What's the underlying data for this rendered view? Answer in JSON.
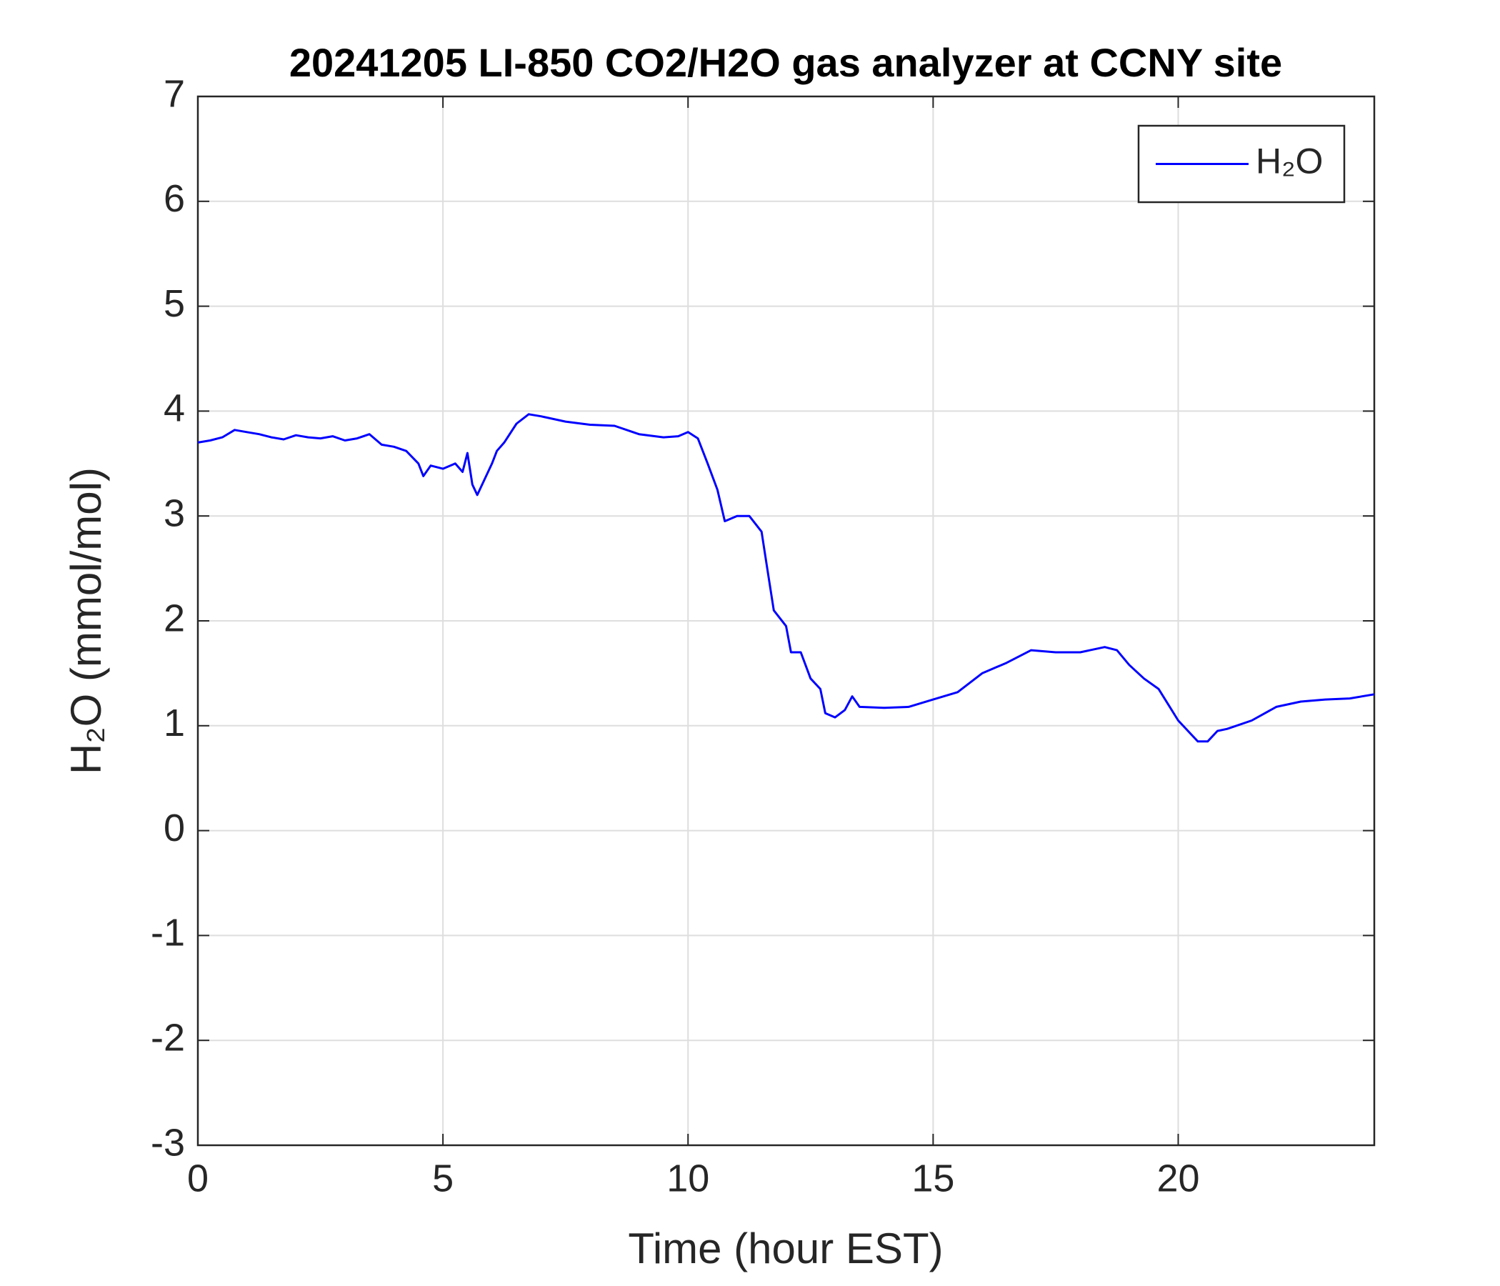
{
  "chart_data": {
    "type": "line",
    "title": "20241205 LI-850 CO2/H2O gas analyzer at CCNY site",
    "x_label": "Time (hour EST)",
    "y_label": "H₂O (mmol/mol)",
    "xlim": [
      0,
      24
    ],
    "xticks": [
      0,
      5,
      10,
      15,
      20
    ],
    "ylim": [
      -3,
      7
    ],
    "yticks": [
      -3,
      -2,
      -1,
      0,
      1,
      2,
      3,
      4,
      5,
      6,
      7
    ],
    "grid": true,
    "legend": "upper-right",
    "x": [
      0,
      0.25,
      0.5,
      0.75,
      1.0,
      1.25,
      1.5,
      1.75,
      2.0,
      2.25,
      2.5,
      2.75,
      3.0,
      3.25,
      3.5,
      3.75,
      4.0,
      4.25,
      4.5,
      4.6,
      4.75,
      5.0,
      5.25,
      5.4,
      5.5,
      5.6,
      5.7,
      5.85,
      6.0,
      6.1,
      6.25,
      6.5,
      6.75,
      7.0,
      7.5,
      8.0,
      8.5,
      9.0,
      9.5,
      9.8,
      10.0,
      10.2,
      10.4,
      10.6,
      10.75,
      11.0,
      11.25,
      11.5,
      11.6,
      11.75,
      12.0,
      12.1,
      12.3,
      12.5,
      12.7,
      12.8,
      13.0,
      13.2,
      13.35,
      13.5,
      14.0,
      14.5,
      15.0,
      15.5,
      16.0,
      16.5,
      17.0,
      17.5,
      18.0,
      18.5,
      18.75,
      19.0,
      19.3,
      19.6,
      19.8,
      20.0,
      20.2,
      20.4,
      20.6,
      20.8,
      21.0,
      21.5,
      22.0,
      22.5,
      23.0,
      23.5,
      24.0
    ],
    "series": [
      {
        "name": "H₂O",
        "color": "#0000ff",
        "values": [
          3.7,
          3.72,
          3.75,
          3.82,
          3.8,
          3.78,
          3.75,
          3.73,
          3.77,
          3.75,
          3.74,
          3.76,
          3.72,
          3.74,
          3.78,
          3.68,
          3.66,
          3.62,
          3.5,
          3.38,
          3.48,
          3.45,
          3.5,
          3.42,
          3.6,
          3.3,
          3.2,
          3.35,
          3.5,
          3.62,
          3.7,
          3.88,
          3.97,
          3.95,
          3.9,
          3.87,
          3.86,
          3.78,
          3.75,
          3.76,
          3.8,
          3.74,
          3.5,
          3.25,
          2.95,
          3.0,
          3.0,
          2.85,
          2.55,
          2.1,
          1.95,
          1.7,
          1.7,
          1.45,
          1.35,
          1.12,
          1.08,
          1.15,
          1.28,
          1.18,
          1.17,
          1.18,
          1.25,
          1.32,
          1.5,
          1.6,
          1.72,
          1.7,
          1.7,
          1.75,
          1.72,
          1.58,
          1.45,
          1.35,
          1.2,
          1.05,
          0.95,
          0.85,
          0.85,
          0.95,
          0.97,
          1.05,
          1.18,
          1.23,
          1.25,
          1.26,
          1.3
        ]
      }
    ]
  }
}
